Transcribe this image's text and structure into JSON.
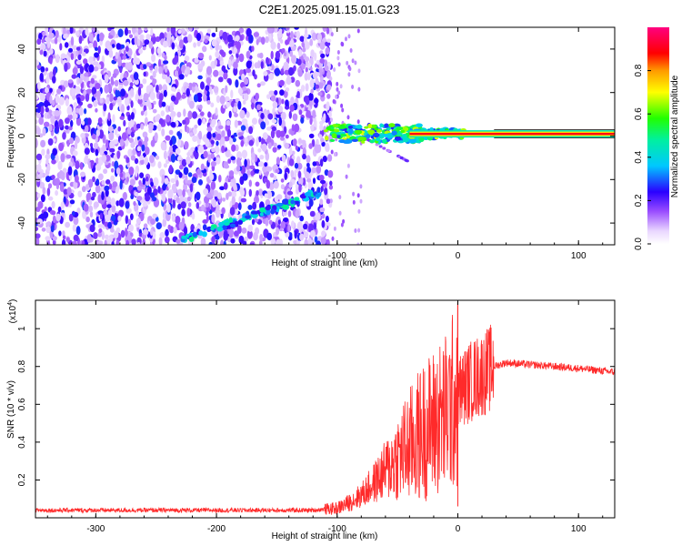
{
  "title": "C2E1.2025.091.15.01.G23",
  "chart_data": [
    {
      "type": "heatmap",
      "title": "C2E1.2025.091.15.01.G23",
      "xlabel": "Height of straight line (km)",
      "ylabel": "Frequency (Hz)",
      "xlim": [
        -350,
        130
      ],
      "ylim": [
        -50,
        50
      ],
      "xticks": [
        "-300",
        "-200",
        "-100",
        "0",
        "100"
      ],
      "yticks": [
        "-40",
        "-20",
        "0",
        "20",
        "40"
      ],
      "colorbar": {
        "label": "Normalized spectral amplitude",
        "range": [
          0,
          1
        ],
        "ticks": [
          "0.0",
          "0.2",
          "0.4",
          "0.6",
          "0.8"
        ],
        "colormap": "rainbow (white-violet-blue-cyan-green-yellow-red-magenta)"
      },
      "features": [
        {
          "name": "signal tone",
          "x_range": [
            -110,
            130
          ],
          "frequency_hz": 1,
          "amplitude": "high (0.7-1.0)"
        },
        {
          "name": "diffuse noise",
          "x_range": [
            -350,
            -105
          ],
          "frequency_hz_range": [
            -50,
            50
          ],
          "amplitude": "low (0.1-0.4)"
        },
        {
          "name": "descending branch",
          "x_from": [
            -230,
            -48
          ],
          "x_to": [
            -115,
            -26
          ],
          "amplitude": "medium (0.3-0.6)"
        },
        {
          "name": "branch off tone",
          "x_from": [
            -80,
            0
          ],
          "x_to": [
            -40,
            -12
          ],
          "amplitude": "low"
        }
      ],
      "grid": false
    },
    {
      "type": "line",
      "xlabel": "Height of straight line (km)",
      "ylabel": "SNR (10 * v/v)",
      "yscale_label": "(x10",
      "yscale_exponent": "4",
      "xlim": [
        -350,
        130
      ],
      "ylim": [
        0,
        1.15
      ],
      "xticks": [
        "-300",
        "-200",
        "-100",
        "0",
        "100"
      ],
      "yticks": [
        "0.2",
        "0.4",
        "0.6",
        "0.8",
        "1"
      ],
      "color": "#ff2a2a",
      "grid": false,
      "series": [
        {
          "x": [
            -350,
            -300,
            -250,
            -200,
            -150,
            -120,
            -100,
            -90,
            -80,
            -70,
            -60,
            -50,
            -40,
            -30,
            -20,
            -10,
            -5,
            0,
            10,
            20,
            30,
            40,
            60,
            80,
            100,
            130
          ],
          "y": [
            0.04,
            0.04,
            0.04,
            0.04,
            0.04,
            0.04,
            0.05,
            0.08,
            0.12,
            0.18,
            0.25,
            0.32,
            0.38,
            0.45,
            0.5,
            0.55,
            0.6,
            0.66,
            0.72,
            0.76,
            0.8,
            0.82,
            0.81,
            0.8,
            0.79,
            0.77
          ]
        }
      ],
      "annotations": [
        {
          "x": 0,
          "y": 1.14,
          "text": "spike"
        }
      ]
    }
  ]
}
